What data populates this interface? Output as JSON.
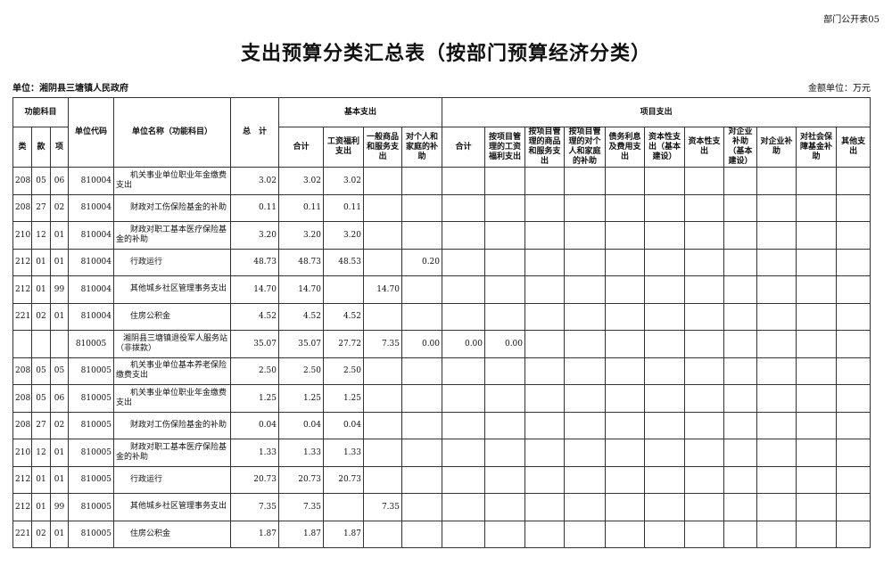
{
  "form_code": "部门公开表05",
  "title": "支出预算分类汇总表（按部门预算经济分类）",
  "unit_label": "单位：湘阴县三塘镇人民政府",
  "money_unit": "金额单位：万元",
  "headers": {
    "func": "功能科目",
    "lei": "类",
    "kuan": "款",
    "xiang": "项",
    "code": "单位代码",
    "name": "单位名称（功能科目）",
    "total": "总　计",
    "basic": "基本支出",
    "project": "项目支出",
    "basic_cols": [
      "合计",
      "工资福利支出",
      "一般商品和服务支出",
      "对个人和家庭的补助"
    ],
    "project_cols": [
      "合计",
      "按项目管理的工资福利支出",
      "按项目管理的商品和服务支出",
      "按项目管理的对个人和家庭的补助",
      "债务利息及费用支出",
      "资本性支出（基本建设）",
      "资本性支出",
      "对企业补助（基本建设）",
      "对企业补助",
      "对社会保障基金补助",
      "其他支出"
    ]
  },
  "rows": [
    [
      "208",
      "05",
      "06",
      "810004",
      "机关事业单位职业年金缴费支出",
      "3.02",
      "3.02",
      "3.02",
      "",
      "",
      "",
      "",
      "",
      "",
      "",
      "",
      "",
      "",
      "",
      "",
      ""
    ],
    [
      "208",
      "27",
      "02",
      "810004",
      "财政对工伤保险基金的补助",
      "0.11",
      "0.11",
      "0.11",
      "",
      "",
      "",
      "",
      "",
      "",
      "",
      "",
      "",
      "",
      "",
      "",
      ""
    ],
    [
      "210",
      "12",
      "01",
      "810004",
      "财政对职工基本医疗保险基金的补助",
      "3.20",
      "3.20",
      "3.20",
      "",
      "",
      "",
      "",
      "",
      "",
      "",
      "",
      "",
      "",
      "",
      "",
      ""
    ],
    [
      "212",
      "01",
      "01",
      "810004",
      "行政运行",
      "48.73",
      "48.73",
      "48.53",
      "",
      "0.20",
      "",
      "",
      "",
      "",
      "",
      "",
      "",
      "",
      "",
      "",
      ""
    ],
    [
      "212",
      "01",
      "99",
      "810004",
      "其他城乡社区管理事务支出",
      "14.70",
      "14.70",
      "",
      "14.70",
      "",
      "",
      "",
      "",
      "",
      "",
      "",
      "",
      "",
      "",
      "",
      ""
    ],
    [
      "221",
      "02",
      "01",
      "810004",
      "住房公积金",
      "4.52",
      "4.52",
      "4.52",
      "",
      "",
      "",
      "",
      "",
      "",
      "",
      "",
      "",
      "",
      "",
      "",
      ""
    ],
    [
      "",
      "",
      "",
      "810005",
      "湘阴县三塘镇退役军人服务站（非拨款）",
      "35.07",
      "35.07",
      "27.72",
      "7.35",
      "0.00",
      "0.00",
      "0.00",
      "",
      "",
      "",
      "",
      "",
      "",
      "",
      "",
      ""
    ],
    [
      "208",
      "05",
      "05",
      "810005",
      "机关事业单位基本养老保险缴费支出",
      "2.50",
      "2.50",
      "2.50",
      "",
      "",
      "",
      "",
      "",
      "",
      "",
      "",
      "",
      "",
      "",
      "",
      ""
    ],
    [
      "208",
      "05",
      "06",
      "810005",
      "机关事业单位职业年金缴费支出",
      "1.25",
      "1.25",
      "1.25",
      "",
      "",
      "",
      "",
      "",
      "",
      "",
      "",
      "",
      "",
      "",
      "",
      ""
    ],
    [
      "208",
      "27",
      "02",
      "810005",
      "财政对工伤保险基金的补助",
      "0.04",
      "0.04",
      "0.04",
      "",
      "",
      "",
      "",
      "",
      "",
      "",
      "",
      "",
      "",
      "",
      "",
      ""
    ],
    [
      "210",
      "12",
      "01",
      "810005",
      "财政对职工基本医疗保险基金的补助",
      "1.33",
      "1.33",
      "1.33",
      "",
      "",
      "",
      "",
      "",
      "",
      "",
      "",
      "",
      "",
      "",
      "",
      ""
    ],
    [
      "212",
      "01",
      "01",
      "810005",
      "行政运行",
      "20.73",
      "20.73",
      "20.73",
      "",
      "",
      "",
      "",
      "",
      "",
      "",
      "",
      "",
      "",
      "",
      "",
      ""
    ],
    [
      "212",
      "01",
      "99",
      "810005",
      "其他城乡社区管理事务支出",
      "7.35",
      "7.35",
      "",
      "7.35",
      "",
      "",
      "",
      "",
      "",
      "",
      "",
      "",
      "",
      "",
      "",
      ""
    ],
    [
      "221",
      "02",
      "01",
      "810005",
      "住房公积金",
      "1.87",
      "1.87",
      "1.87",
      "",
      "",
      "",
      "",
      "",
      "",
      "",
      "",
      "",
      "",
      "",
      "",
      ""
    ]
  ]
}
